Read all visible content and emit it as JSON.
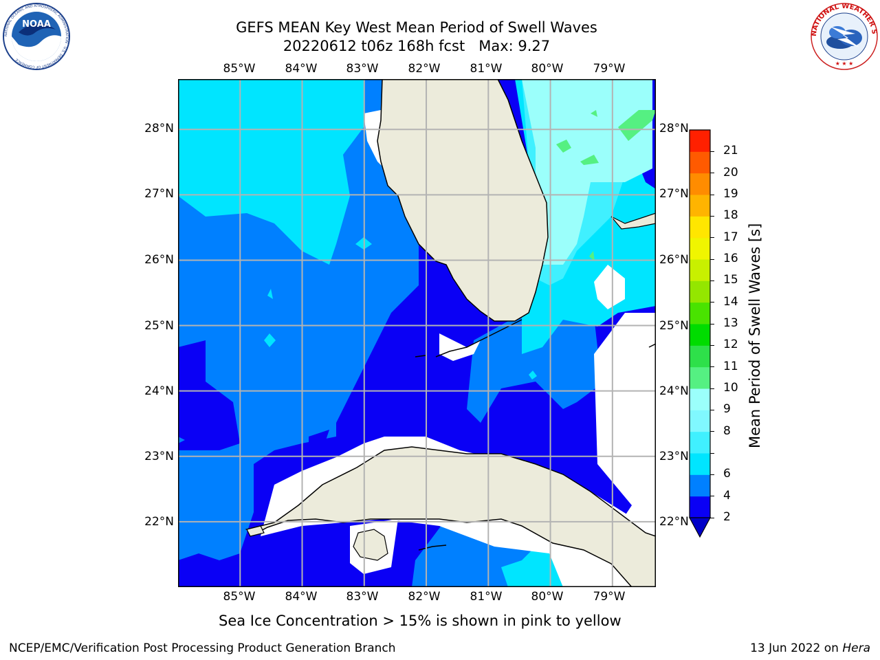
{
  "header": {
    "title_line1": "GEFS MEAN Key West Mean Period of Swell Waves",
    "title_line2": "20220612 t06z 168h fcst   Max: 9.27"
  },
  "logos": {
    "left": {
      "name": "noaa-logo",
      "text": "NOAA",
      "ring_text": "NATIONAL OCEANIC AND ATMOSPHERIC ADMINISTRATION · U.S. DEPARTMENT OF COMMERCE"
    },
    "right": {
      "name": "nws-logo",
      "ring_text": "NATIONAL WEATHER SERVICE"
    }
  },
  "map": {
    "lon_labels": [
      "85°W",
      "84°W",
      "83°W",
      "82°W",
      "81°W",
      "80°W",
      "79°W"
    ],
    "lat_labels": [
      "28°N",
      "27°N",
      "26°N",
      "25°N",
      "24°N",
      "23°N",
      "22°N"
    ],
    "lon_values": [
      -85,
      -84,
      -83,
      -82,
      -81,
      -80,
      -79
    ],
    "lat_values": [
      28,
      27,
      26,
      25,
      24,
      23,
      22
    ],
    "extent": {
      "lon_min": -86,
      "lon_max": -78.3,
      "lat_min": 21,
      "lat_max": 28.77
    },
    "land_color": "#ecebdb",
    "grid_color": "#b3b3b3"
  },
  "colorbar": {
    "label": "Mean Period of Swell Waves [s]",
    "ticks": [
      "21",
      "20",
      "19",
      "18",
      "17",
      "16",
      "15",
      "14",
      "13",
      "12",
      "11",
      "10",
      "9",
      "8",
      "6",
      "4",
      "2"
    ],
    "levels": [
      2,
      4,
      6,
      7,
      8,
      9,
      10,
      11,
      12,
      13,
      14,
      15,
      16,
      17,
      18,
      19,
      20,
      21
    ],
    "colors": [
      "#0a00f5",
      "#0080ff",
      "#00e5ff",
      "#40f0ff",
      "#80f8ff",
      "#9bfffb",
      "#55f082",
      "#2ee04a",
      "#00dc00",
      "#49e300",
      "#94e600",
      "#c8f000",
      "#f0f500",
      "#ffe600",
      "#ffb400",
      "#ff8c00",
      "#ff5a00",
      "#ff2000"
    ],
    "under_color": "#0000c8",
    "extend": "min"
  },
  "note": "Sea Ice Concentration > 15% is shown in pink to yellow",
  "footer": {
    "left": "NCEP/EMC/Verification Post Processing Product Generation Branch",
    "right_date": "13 Jun 2022 on ",
    "right_host": "Hera"
  }
}
